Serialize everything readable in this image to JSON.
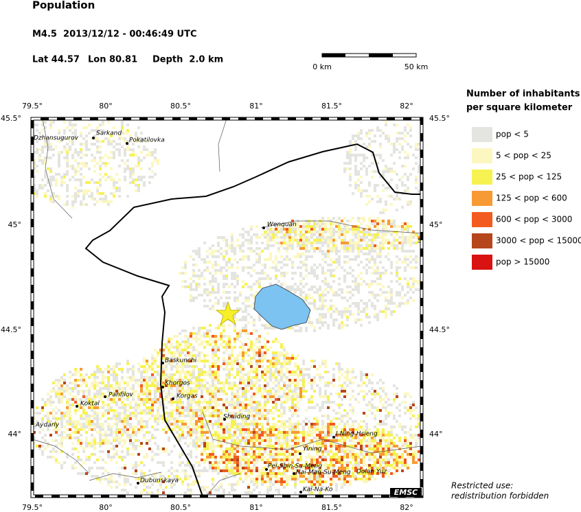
{
  "header": {
    "title": "Population",
    "event": "M4.5  2013/12/12 - 00:46:49 UTC",
    "lat": "Lat 44.57",
    "lon": "Lon 80.81",
    "depth": "Depth  2.0 km"
  },
  "scale_bar": {
    "start_label": "0 km",
    "end_label": "50 km"
  },
  "map": {
    "lon_labels": [
      "79.5°",
      "80°",
      "80.5°",
      "81°",
      "81.5°",
      "82°"
    ],
    "lat_labels": [
      "45.5°",
      "45°",
      "44.5°",
      "44°"
    ],
    "places": [
      "Dzhansugurov",
      "Sarkand",
      "Pokatilovka",
      "Wenquan",
      "5",
      "Baskunchi",
      "Khorgos",
      "Korgas",
      "Panfilov",
      "Koktal",
      "Aydarly",
      "Shuiding",
      "I-Ning-Hsieng",
      "Yining",
      "Pei-Shin-Su-Meng",
      "Nai-Man-Su-Meng",
      "Dolan Yuz",
      "Dubunskaya",
      "Kai-Na-Ko"
    ],
    "badge": "EMSC"
  },
  "legend": {
    "title_line1": "Number of inhabitants",
    "title_line2": "per square kilometer",
    "items": [
      {
        "label": "pop < 5",
        "color": "#e4e4e0"
      },
      {
        "label": "5 < pop < 25",
        "color": "#fcf7c0"
      },
      {
        "label": "25 < pop < 125",
        "color": "#f6f251"
      },
      {
        "label": "125 < pop < 600",
        "color": "#f89a34"
      },
      {
        "label": "600 < pop < 3000",
        "color": "#f35a1f"
      },
      {
        "label": "3000 < pop < 15000",
        "color": "#b6461b"
      },
      {
        "label": "pop > 15000",
        "color": "#d91212"
      }
    ]
  },
  "footer": {
    "line1": "Restricted use:",
    "line2": "redistribution forbidden"
  }
}
